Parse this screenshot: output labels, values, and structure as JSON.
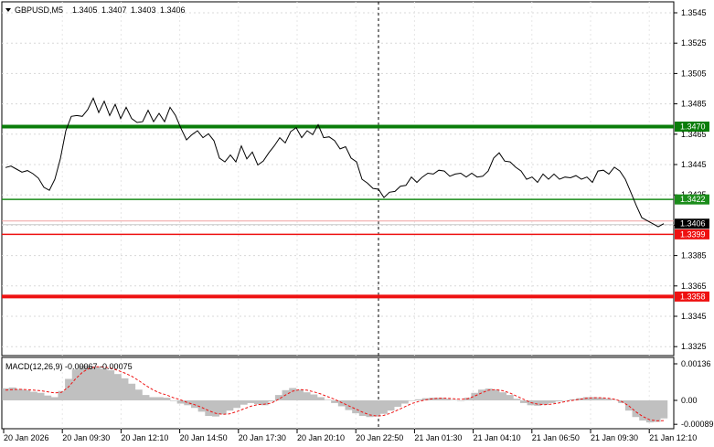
{
  "header": {
    "symbol": "GBPUSD,M5",
    "open": "1.3405",
    "high": "1.3407",
    "low": "1.3403",
    "close": "1.3406"
  },
  "price_axis": {
    "ticks": [
      "1.3545",
      "1.3525",
      "1.3505",
      "1.3485",
      "1.3465",
      "1.3445",
      "1.3425",
      "1.3405",
      "1.3385",
      "1.3365",
      "1.3345",
      "1.3325"
    ]
  },
  "levels": [
    {
      "label": "1.3470",
      "value": 1.347,
      "color": "#0a7d0a",
      "thick": true
    },
    {
      "label": "1.3422",
      "value": 1.3422,
      "color": "#1a8c1a",
      "thick": false
    },
    {
      "label": "1.3399",
      "value": 1.3399,
      "color": "#ee1111",
      "thick": false
    },
    {
      "label": "1.3358",
      "value": 1.3358,
      "color": "#ee1111",
      "thick": true
    }
  ],
  "current_price": {
    "label": "1.3406",
    "value": 1.3406
  },
  "indicator": {
    "label": "MACD(12,26,9) -0.00067 -0.00075",
    "ticks": [
      "0.00136",
      "0.00",
      "-0.00089"
    ]
  },
  "time_axis": {
    "labels": [
      "20 Jan 2026",
      "20 Jan 09:30",
      "20 Jan 12:10",
      "20 Jan 14:50",
      "20 Jan 17:30",
      "20 Jan 20:10",
      "20 Jan 22:50",
      "21 Jan 01:30",
      "21 Jan 04:10",
      "21 Jan 06:50",
      "21 Jan 09:30",
      "21 Jan 12:10"
    ]
  },
  "chart_data": {
    "type": "line",
    "price_range": [
      1.332,
      1.355
    ],
    "close": [
      1.3443,
      1.3444,
      1.3442,
      1.344,
      1.3441,
      1.3439,
      1.3436,
      1.343,
      1.3428,
      1.3436,
      1.3448,
      1.3468,
      1.3476,
      1.3478,
      1.3476,
      1.3482,
      1.3488,
      1.348,
      1.3486,
      1.3478,
      1.3484,
      1.3476,
      1.3482,
      1.3476,
      1.3472,
      1.3474,
      1.348,
      1.3474,
      1.3478,
      1.3474,
      1.3482,
      1.3478,
      1.3468,
      1.3462,
      1.3464,
      1.3468,
      1.3462,
      1.3466,
      1.346,
      1.345,
      1.3446,
      1.3452,
      1.3446,
      1.3458,
      1.3448,
      1.3454,
      1.3444,
      1.3448,
      1.3452,
      1.3458,
      1.3462,
      1.346,
      1.3466,
      1.347,
      1.3462,
      1.3468,
      1.3464,
      1.3472,
      1.3462,
      1.3464,
      1.346,
      1.3456,
      1.3456,
      1.345,
      1.3446,
      1.3436,
      1.3432,
      1.343,
      1.3428,
      1.3424,
      1.3426,
      1.3428,
      1.343,
      1.3432,
      1.3436,
      1.3434,
      1.3436,
      1.344,
      1.3438,
      1.3442,
      1.344,
      1.3438,
      1.3438,
      1.344,
      1.3436,
      1.344,
      1.3436,
      1.3438,
      1.344,
      1.345,
      1.3452,
      1.3448,
      1.3446,
      1.3444,
      1.344,
      1.3436,
      1.3436,
      1.3434,
      1.3438,
      1.3436,
      1.3438,
      1.3436,
      1.3436,
      1.3437,
      1.3437,
      1.3436,
      1.3436,
      1.3434,
      1.344,
      1.3442,
      1.3438,
      1.3444,
      1.344,
      1.3436,
      1.3426,
      1.3418,
      1.341,
      1.3408,
      1.3406,
      1.3404,
      1.3406
    ],
    "macd": {
      "hist": [
        0.00045,
        0.00048,
        0.00042,
        0.00038,
        0.00032,
        0.00028,
        0.00018,
        0.00012,
        0.00035,
        0.0008,
        0.00115,
        0.0013,
        0.00128,
        0.00124,
        0.00118,
        0.00112,
        0.00098,
        0.00082,
        0.00062,
        0.0004,
        0.0002,
        0.00012,
        0.00012,
        0.0001,
        -2e-05,
        -0.00012,
        -0.00018,
        -0.00028,
        -0.00042,
        -0.00058,
        -0.0006,
        -0.00052,
        -0.00038,
        -0.00028,
        -0.00016,
        -0.0001,
        -0.00014,
        -0.00018,
        -4e-05,
        0.0002,
        0.00038,
        0.00046,
        0.0004,
        0.0003,
        0.00022,
        0.00012,
        2e-05,
        -0.0001,
        -0.00022,
        -0.00036,
        -0.00048,
        -0.00058,
        -0.00062,
        -0.0006,
        -0.0005,
        -0.00038,
        -0.00024,
        -0.00012,
        -2e-05,
        4e-05,
        8e-05,
        0.0001,
        0.0001,
        6e-05,
        2e-05,
        -2e-05,
        0.0001,
        0.00028,
        0.0004,
        0.00044,
        0.0004,
        0.0003,
        0.0002,
        6e-05,
        -0.0001,
        -0.00018,
        -0.0002,
        -0.00016,
        -0.0001,
        -4e-05,
        0.0,
        4e-05,
        8e-05,
        0.00012,
        0.00012,
        0.0001,
        6e-05,
        2e-05,
        -0.0001,
        -0.00038,
        -0.00062,
        -0.00075,
        -0.00082,
        -0.0008,
        -0.00067
      ],
      "signal": [
        0.00038,
        0.0004,
        0.00041,
        0.0004,
        0.00038,
        0.00036,
        0.00032,
        0.00028,
        0.0003,
        0.0005,
        0.0008,
        0.00105,
        0.0012,
        0.00125,
        0.00124,
        0.0012,
        0.00112,
        0.00102,
        0.0009,
        0.00074,
        0.00056,
        0.0004,
        0.00028,
        0.0002,
        0.0001,
        2e-05,
        -8e-05,
        -0.00016,
        -0.00026,
        -0.00038,
        -0.00048,
        -0.00052,
        -0.0005,
        -0.00042,
        -0.00032,
        -0.00022,
        -0.00016,
        -0.00014,
        -0.0001,
        4e-05,
        0.0002,
        0.00034,
        0.0004,
        0.00038,
        0.00032,
        0.00024,
        0.00014,
        4e-05,
        -8e-05,
        -0.0002,
        -0.00032,
        -0.00044,
        -0.00054,
        -0.00058,
        -0.00056,
        -0.00048,
        -0.00036,
        -0.00024,
        -0.00012,
        -4e-05,
        2e-05,
        6e-05,
        8e-05,
        8e-05,
        6e-05,
        4e-05,
        6e-05,
        0.00016,
        0.00028,
        0.00038,
        0.0004,
        0.00036,
        0.00028,
        0.00016,
        4e-05,
        -8e-05,
        -0.00014,
        -0.00016,
        -0.00014,
        -0.0001,
        -4e-05,
        0.0,
        4e-05,
        8e-05,
        0.0001,
        0.0001,
        8e-05,
        4e-05,
        -4e-05,
        -0.0002,
        -0.00042,
        -0.0006,
        -0.00072,
        -0.00076,
        -0.00075
      ]
    }
  }
}
